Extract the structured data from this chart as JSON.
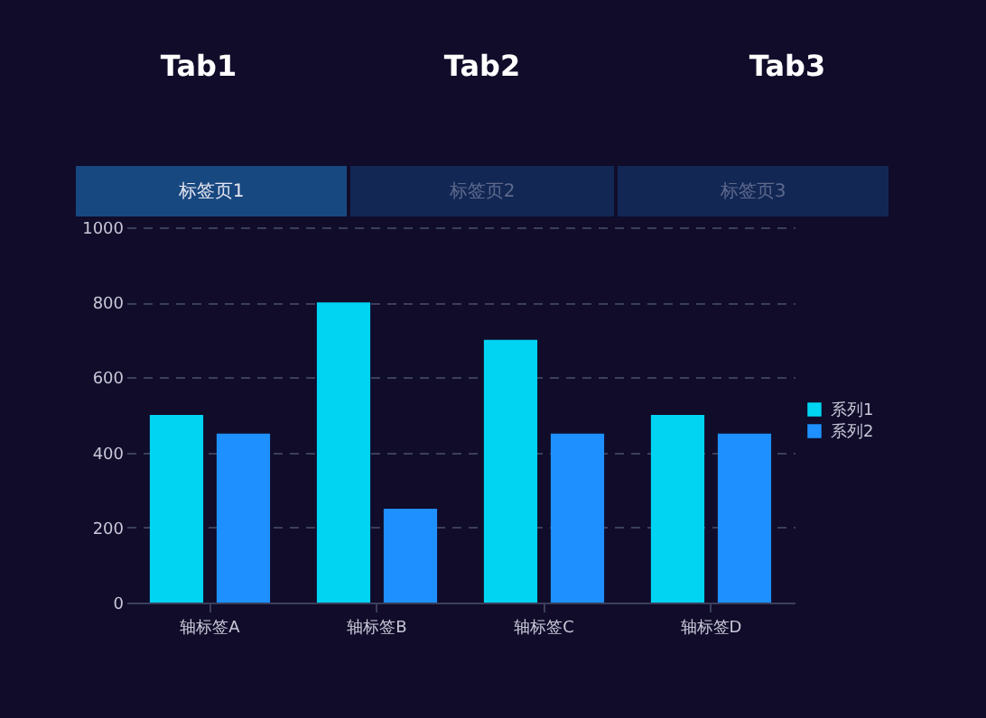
{
  "chart_data": {
    "type": "bar",
    "categories": [
      "轴标签A",
      "轴标签B",
      "轴标签C",
      "轴标签D"
    ],
    "series": [
      {
        "name": "系列1",
        "color": "#00d4f2",
        "values": [
          500,
          800,
          700,
          500
        ]
      },
      {
        "name": "系列2",
        "color": "#1e90ff",
        "values": [
          450,
          250,
          450,
          450
        ]
      }
    ],
    "ylim": [
      0,
      1000
    ],
    "yticks": [
      0,
      200,
      400,
      600,
      800,
      1000
    ],
    "grid": "y",
    "legend": "right",
    "annotations": [
      "Tab1",
      "Tab2",
      "Tab3",
      "标签页1",
      "标签页2",
      "标签页3"
    ]
  }
}
